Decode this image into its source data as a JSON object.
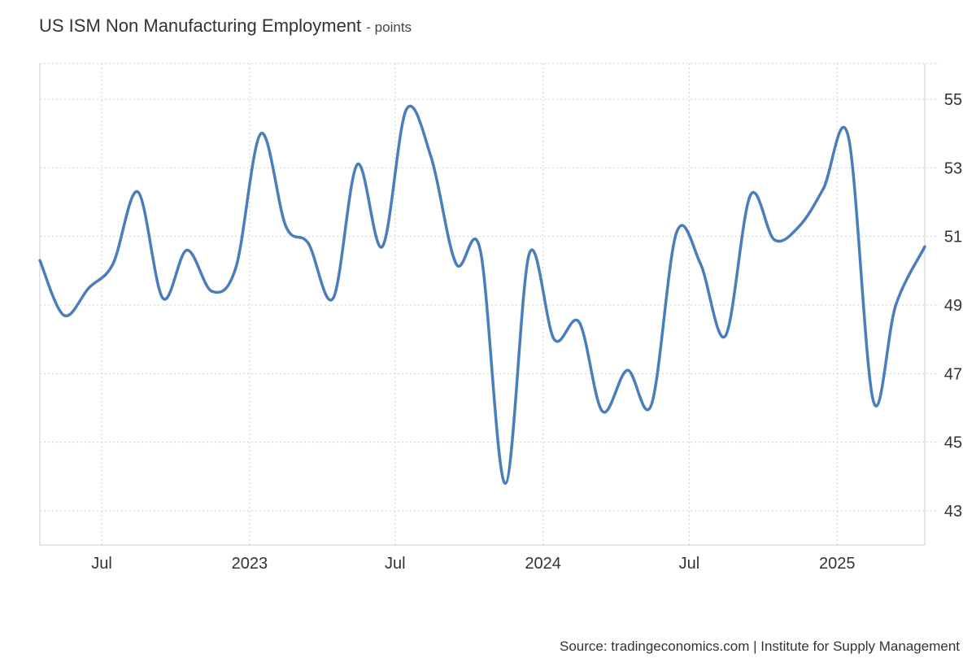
{
  "title": "US ISM Non Manufacturing Employment",
  "subtitle": "- points",
  "source": "Source: tradingeconomics.com | Institute for Supply Management",
  "colors": {
    "line": "#4a7ebb",
    "grid": "#d0d0d0",
    "axis": "#cccccc"
  },
  "chart_data": {
    "type": "line",
    "title": "US ISM Non Manufacturing Employment",
    "ylabel": "points",
    "ylim": [
      42,
      56
    ],
    "yticks": [
      43,
      45,
      47,
      49,
      51,
      53,
      55
    ],
    "x_range": [
      "2022-04-15",
      "2025-04-20"
    ],
    "xticks": [
      {
        "date": "2022-07-01",
        "label": "Jul"
      },
      {
        "date": "2023-01-01",
        "label": "2023"
      },
      {
        "date": "2023-07-01",
        "label": "Jul"
      },
      {
        "date": "2024-01-01",
        "label": "2024"
      },
      {
        "date": "2024-07-01",
        "label": "Jul"
      },
      {
        "date": "2025-01-01",
        "label": "2025"
      }
    ],
    "grid": true,
    "series": [
      {
        "points": [
          {
            "x": "2022-04-15",
            "y": 50.3
          },
          {
            "x": "2022-05-15",
            "y": 48.7
          },
          {
            "x": "2022-06-15",
            "y": 49.5
          },
          {
            "x": "2022-07-15",
            "y": 50.2
          },
          {
            "x": "2022-08-15",
            "y": 52.3
          },
          {
            "x": "2022-09-15",
            "y": 49.2
          },
          {
            "x": "2022-10-15",
            "y": 50.6
          },
          {
            "x": "2022-11-15",
            "y": 49.4
          },
          {
            "x": "2022-12-15",
            "y": 50.1
          },
          {
            "x": "2023-01-15",
            "y": 54.0
          },
          {
            "x": "2023-02-15",
            "y": 51.3
          },
          {
            "x": "2023-03-15",
            "y": 50.8
          },
          {
            "x": "2023-04-15",
            "y": 49.2
          },
          {
            "x": "2023-05-15",
            "y": 53.1
          },
          {
            "x": "2023-06-15",
            "y": 50.7
          },
          {
            "x": "2023-07-15",
            "y": 54.7
          },
          {
            "x": "2023-08-15",
            "y": 53.3
          },
          {
            "x": "2023-09-15",
            "y": 50.2
          },
          {
            "x": "2023-10-15",
            "y": 50.6
          },
          {
            "x": "2023-11-15",
            "y": 43.8
          },
          {
            "x": "2023-12-15",
            "y": 50.5
          },
          {
            "x": "2024-01-15",
            "y": 48.0
          },
          {
            "x": "2024-02-15",
            "y": 48.5
          },
          {
            "x": "2024-03-15",
            "y": 45.9
          },
          {
            "x": "2024-04-15",
            "y": 47.1
          },
          {
            "x": "2024-05-15",
            "y": 46.1
          },
          {
            "x": "2024-06-15",
            "y": 51.1
          },
          {
            "x": "2024-07-15",
            "y": 50.2
          },
          {
            "x": "2024-08-15",
            "y": 48.1
          },
          {
            "x": "2024-09-15",
            "y": 52.2
          },
          {
            "x": "2024-10-15",
            "y": 50.9
          },
          {
            "x": "2024-11-15",
            "y": 51.3
          },
          {
            "x": "2024-12-15",
            "y": 52.4
          },
          {
            "x": "2025-01-15",
            "y": 53.9
          },
          {
            "x": "2025-02-15",
            "y": 46.2
          },
          {
            "x": "2025-03-15",
            "y": 49.0
          },
          {
            "x": "2025-04-20",
            "y": 50.7
          }
        ]
      }
    ]
  }
}
